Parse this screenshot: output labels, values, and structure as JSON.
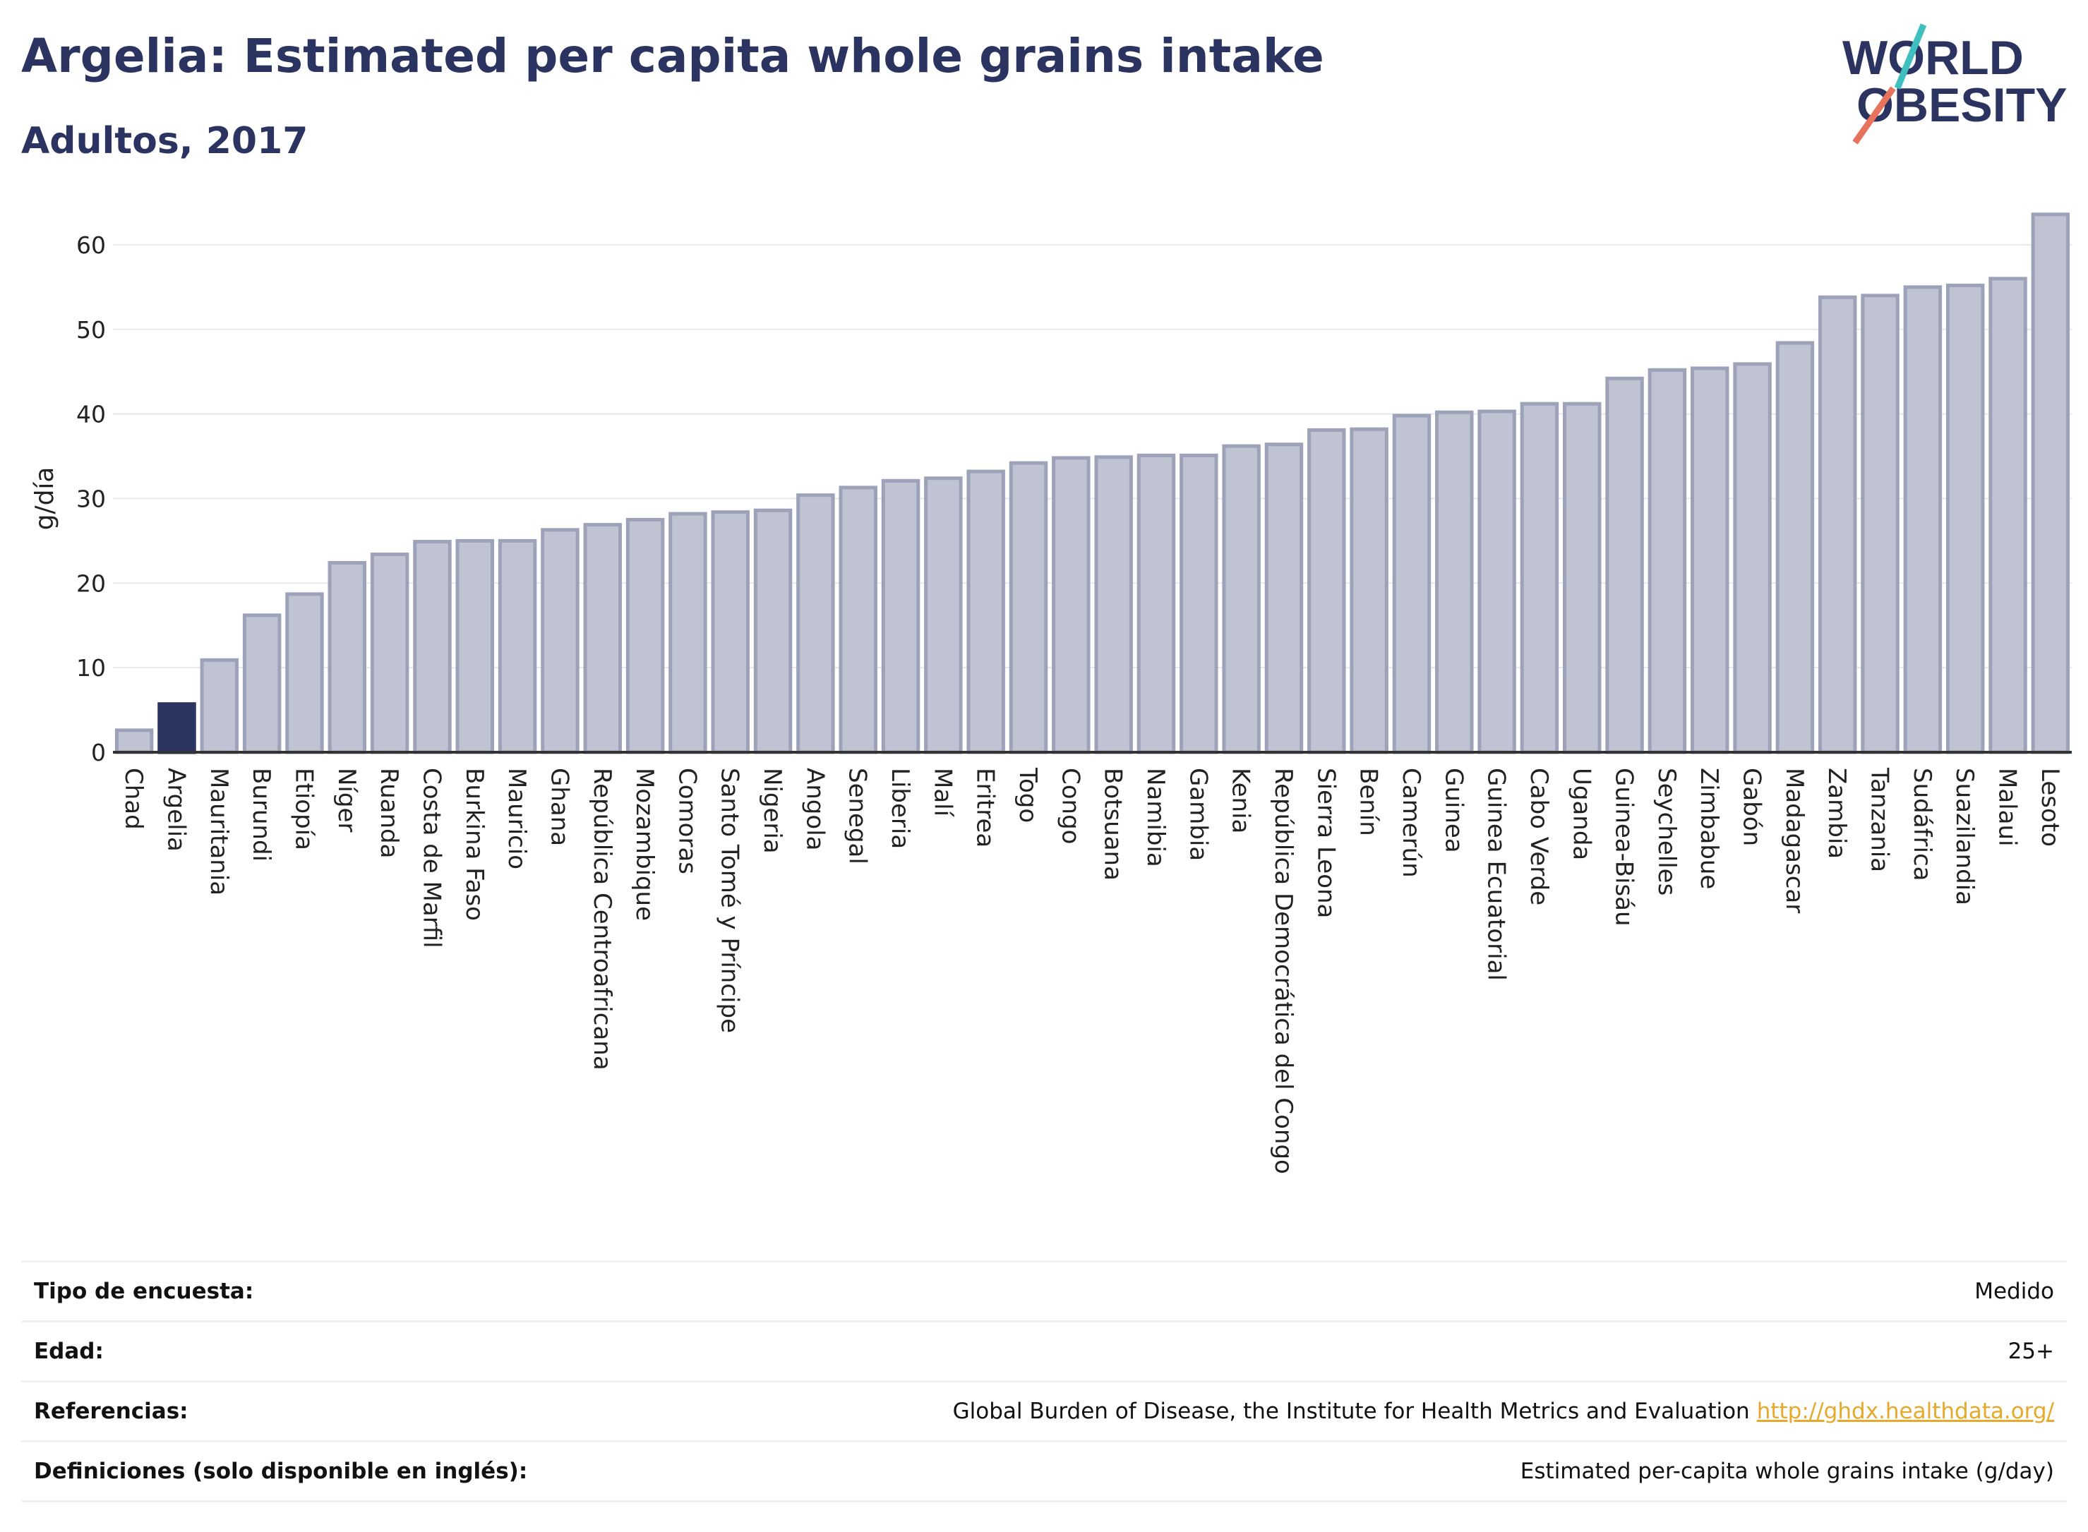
{
  "header": {
    "title": "Argelia: Estimated per capita whole grains intake",
    "subtitle": "Adultos, 2017",
    "logo_line1": "WORLD",
    "logo_line2": "OBESITY"
  },
  "colors": {
    "bar": "#bfc3d2",
    "bar_outline": "#9da2b8",
    "highlight": "#2b3360",
    "title": "#2b3360",
    "logo_teal": "#3fbfbf",
    "logo_coral": "#e8735d",
    "link": "#e6a92b"
  },
  "chart_data": {
    "type": "bar",
    "ylabel": "g/día",
    "ylim": [
      0,
      65
    ],
    "yticks": [
      0,
      10,
      20,
      30,
      40,
      50,
      60
    ],
    "grid": true,
    "highlight": "Argelia",
    "categories": [
      "Chad",
      "Argelia",
      "Mauritania",
      "Burundi",
      "Etiopía",
      "Níger",
      "Ruanda",
      "Costa de Marfil",
      "Burkina Faso",
      "Mauricio",
      "Ghana",
      "República Centroafricana",
      "Mozambique",
      "Comoras",
      "Santo Tomé y Príncipe",
      "Nigeria",
      "Angola",
      "Senegal",
      "Liberia",
      "Malí",
      "Eritrea",
      "Togo",
      "Congo",
      "Botsuana",
      "Namibia",
      "Gambia",
      "Kenia",
      "República Democrática del Congo",
      "Sierra Leona",
      "Benín",
      "Camerún",
      "Guinea",
      "Guinea Ecuatorial",
      "Cabo Verde",
      "Uganda",
      "Guinea-Bisáu",
      "Seychelles",
      "Zimbabue",
      "Gabón",
      "Madagascar",
      "Zambia",
      "Tanzania",
      "Sudáfrica",
      "Suazilandia",
      "Malaui",
      "Lesoto"
    ],
    "values": [
      2.6,
      5.7,
      10.9,
      16.2,
      18.7,
      22.4,
      23.4,
      24.9,
      25.0,
      25.0,
      26.3,
      26.9,
      27.5,
      28.2,
      28.4,
      28.6,
      30.4,
      31.3,
      32.1,
      32.4,
      33.2,
      34.2,
      34.8,
      34.9,
      35.1,
      35.1,
      36.2,
      36.4,
      38.1,
      38.2,
      39.8,
      40.2,
      40.3,
      41.2,
      41.2,
      44.2,
      45.2,
      45.4,
      45.9,
      48.4,
      53.8,
      54.0,
      55.0,
      55.2,
      56.0,
      63.6
    ]
  },
  "info": [
    {
      "label": "Tipo de encuesta:",
      "value": "Medido"
    },
    {
      "label": "Edad:",
      "value": "25+"
    },
    {
      "label": "Referencias:",
      "value": "Global Burden of Disease, the Institute for Health Metrics and Evaluation",
      "link": "http://ghdx.healthdata.org/"
    },
    {
      "label": "Definiciones (solo disponible en inglés):",
      "value": "Estimated per-capita whole grains intake (g/day)"
    }
  ]
}
